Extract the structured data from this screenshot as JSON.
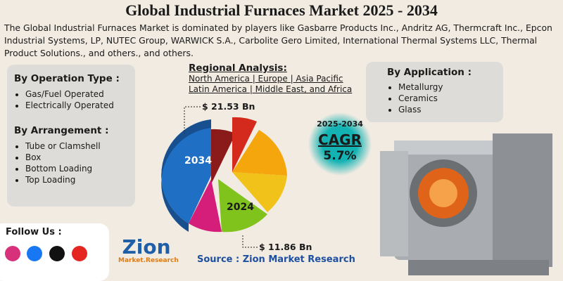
{
  "header": {
    "title": "Global Industrial Furnaces Market 2025 - 2034",
    "description": "The Global Industrial Furnaces Market is dominated by players like Gasbarre Products Inc., Andritz AG, Thermcraft Inc., Epcon Industrial Systems, LP, NUTEC Group, WARWICK S.A., Carbolite Gero Limited, International Thermal Systems LLC, Thermal Product Solutions., and others., and others."
  },
  "segments": {
    "operation_type": {
      "title": "By Operation Type :",
      "items": [
        "Gas/Fuel Operated",
        "Electrically Operated"
      ]
    },
    "arrangement": {
      "title": "By Arrangement :",
      "items": [
        "Tube or Clamshell",
        "Box",
        "Bottom Loading",
        "Top Loading"
      ]
    },
    "application": {
      "title": "By Application :",
      "items": [
        "Metallurgy",
        "Ceramics",
        "Glass"
      ]
    }
  },
  "regional": {
    "title": "Regional Analysis:",
    "lines": [
      "North America | Europe | Asia Pacific",
      "Latin America | Middle East, and Africa"
    ]
  },
  "market": {
    "value_2034": "$ 21.53 Bn",
    "label_2034": "2034",
    "value_2024": "$ 11.86 Bn",
    "label_2024": "2024"
  },
  "cagr": {
    "period": "2025-2034",
    "label": "CAGR",
    "value": "5.7%"
  },
  "social": {
    "title": "Follow Us :"
  },
  "logo": {
    "name": "Zion",
    "sub": "Market.Research"
  },
  "source": "Source : Zion Market Research"
}
